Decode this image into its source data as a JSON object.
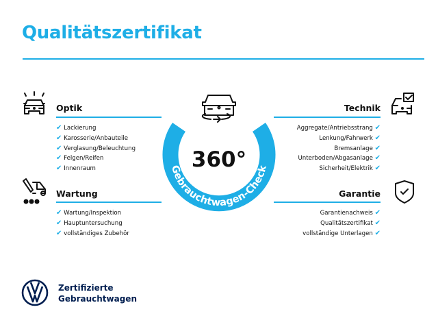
{
  "title": "Qualitätszertifikat",
  "accent_color": "#1eaee6",
  "brand_color": "#001e50",
  "center_badge": {
    "value": "360°",
    "ring_text": "Gebrauchtwagen-Check",
    "icon": "car-rotate-icon"
  },
  "sections": {
    "optik": {
      "title": "Optik",
      "icon": "car-lights-icon",
      "items": [
        "Lackierung",
        "Karosserie/Anbauteile",
        "Verglasung/Beleuchtung",
        "Felgen/Reifen",
        "Innenraum"
      ]
    },
    "wartung": {
      "title": "Wartung",
      "icon": "service-tools-icon",
      "items": [
        "Wartung/Inspektion",
        "Hauptuntersuchung",
        "vollständiges Zubehör"
      ]
    },
    "technik": {
      "title": "Technik",
      "icon": "car-checkbox-icon",
      "items": [
        "Aggregate/Antriebsstrang",
        "Lenkung/Fahrwerk",
        "Bremsanlage",
        "Unterboden/Abgasanlage",
        "Sicherheit/Elektrik"
      ]
    },
    "garantie": {
      "title": "Garantie",
      "icon": "shield-check-icon",
      "items": [
        "Garantienachweis",
        "Qualitätszertifikat",
        "vollständige Unterlagen"
      ]
    }
  },
  "check_mark": "✔",
  "footer": {
    "line1": "Zertifizierte",
    "line2": "Gebrauchtwagen",
    "logo": "vw-logo"
  }
}
